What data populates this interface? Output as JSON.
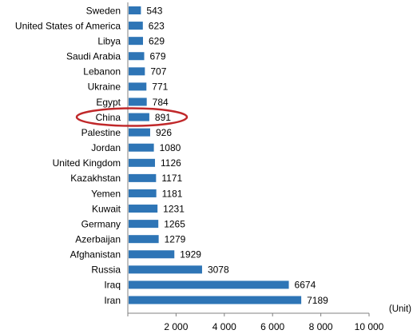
{
  "chart_data": {
    "type": "bar",
    "orientation": "horizontal",
    "categories": [
      "Sweden",
      "United States of America",
      "Libya",
      "Saudi Arabia",
      "Lebanon",
      "Ukraine",
      "Egypt",
      "China",
      "Palestine",
      "Jordan",
      "United Kingdom",
      "Kazakhstan",
      "Yemen",
      "Kuwait",
      "Germany",
      "Azerbaijan",
      "Afghanistan",
      "Russia",
      "Iraq",
      "Iran"
    ],
    "values": [
      543,
      623,
      629,
      679,
      707,
      771,
      784,
      891,
      926,
      1080,
      1126,
      1171,
      1181,
      1231,
      1265,
      1279,
      1929,
      3078,
      6674,
      7189
    ],
    "value_labels": [
      "543",
      "623",
      "629",
      "679",
      "707",
      "771",
      "784",
      "891",
      "926",
      "1080",
      "1126",
      "1171",
      "1181",
      "1231",
      "1265",
      "1279",
      "1929",
      "3078",
      "6674",
      "7189"
    ],
    "xlim": [
      0,
      10000
    ],
    "xticks": [
      2000,
      4000,
      6000,
      8000,
      10000
    ],
    "xtick_labels": [
      "2 000",
      "4 000",
      "6 000",
      "8 000",
      "10 000"
    ],
    "unit_label": "(Unit)",
    "bar_color": "#2E75B6",
    "highlight": {
      "category": "China",
      "color": "#C0282A"
    },
    "grid": false,
    "legend": "none"
  }
}
